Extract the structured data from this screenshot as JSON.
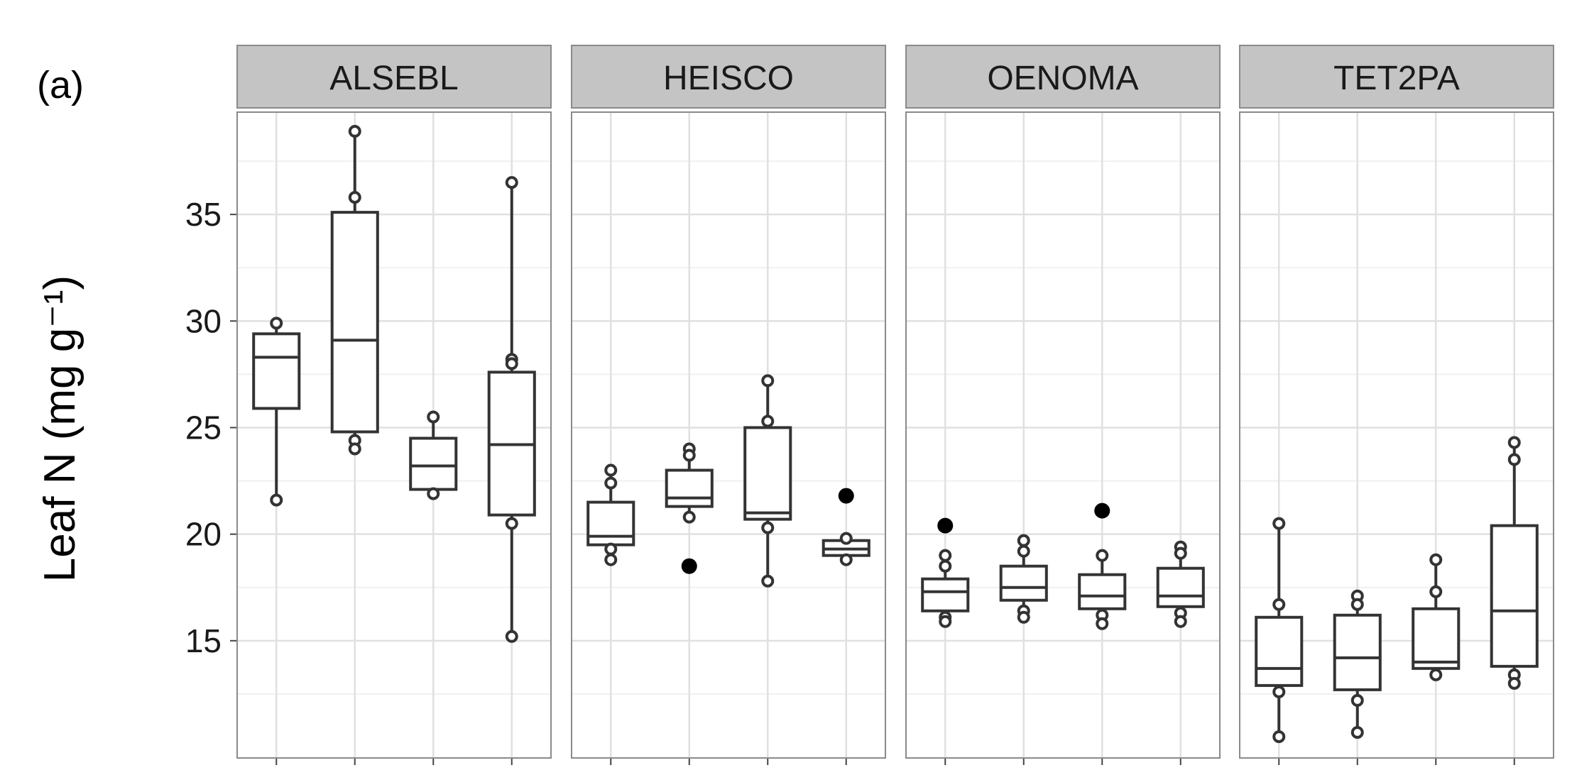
{
  "panel_label": "(a)",
  "chart_data": {
    "type": "boxplot",
    "ylabel": "Leaf N (mg g⁻¹)",
    "ylim": [
      9.5,
      39.8
    ],
    "y_ticks": [
      15,
      20,
      25,
      30,
      35
    ],
    "grid": true,
    "facets": [
      {
        "name": "ALSEBL",
        "boxes": [
          {
            "min": 21.5,
            "q1": 25.9,
            "median": 28.3,
            "q3": 29.4,
            "max": 29.9,
            "points": [
              29.9,
              21.6
            ],
            "outliers": []
          },
          {
            "min": 24.1,
            "q1": 24.8,
            "median": 29.1,
            "q3": 35.1,
            "max": 38.9,
            "points": [
              38.9,
              35.8,
              24.4,
              24.0
            ],
            "outliers": []
          },
          {
            "min": 21.9,
            "q1": 22.1,
            "median": 23.2,
            "q3": 24.5,
            "max": 25.5,
            "points": [
              25.5,
              21.9
            ],
            "outliers": []
          },
          {
            "min": 15.2,
            "q1": 20.9,
            "median": 24.2,
            "q3": 27.6,
            "max": 36.5,
            "points": [
              36.5,
              28.2,
              28.0,
              20.5,
              15.2
            ],
            "outliers": []
          }
        ]
      },
      {
        "name": "HEISCO",
        "boxes": [
          {
            "min": 18.8,
            "q1": 19.5,
            "median": 19.9,
            "q3": 21.5,
            "max": 23.0,
            "points": [
              23.0,
              22.4,
              19.3,
              18.8
            ],
            "outliers": []
          },
          {
            "min": 20.8,
            "q1": 21.3,
            "median": 21.7,
            "q3": 23.0,
            "max": 24.0,
            "points": [
              24.0,
              23.7,
              20.8
            ],
            "outliers": [
              18.5
            ]
          },
          {
            "min": 17.8,
            "q1": 20.7,
            "median": 21.0,
            "q3": 25.0,
            "max": 27.2,
            "points": [
              27.2,
              25.3,
              20.3,
              17.8
            ],
            "outliers": []
          },
          {
            "min": 18.8,
            "q1": 19.0,
            "median": 19.3,
            "q3": 19.7,
            "max": 19.8,
            "points": [
              19.8,
              18.8
            ],
            "outliers": [
              21.8
            ]
          }
        ]
      },
      {
        "name": "OENOMA",
        "boxes": [
          {
            "min": 15.9,
            "q1": 16.4,
            "median": 17.3,
            "q3": 17.9,
            "max": 19.0,
            "points": [
              19.0,
              18.5,
              16.1,
              15.9
            ],
            "outliers": [
              20.4
            ]
          },
          {
            "min": 16.1,
            "q1": 16.9,
            "median": 17.5,
            "q3": 18.5,
            "max": 19.7,
            "points": [
              19.7,
              19.2,
              16.4,
              16.1
            ],
            "outliers": []
          },
          {
            "min": 15.8,
            "q1": 16.5,
            "median": 17.1,
            "q3": 18.1,
            "max": 19.0,
            "points": [
              19.0,
              16.2,
              15.8
            ],
            "outliers": [
              21.1
            ]
          },
          {
            "min": 15.9,
            "q1": 16.6,
            "median": 17.1,
            "q3": 18.4,
            "max": 19.4,
            "points": [
              19.4,
              19.1,
              16.3,
              15.9
            ],
            "outliers": []
          }
        ]
      },
      {
        "name": "TET2PA",
        "boxes": [
          {
            "min": 10.5,
            "q1": 12.9,
            "median": 13.7,
            "q3": 16.1,
            "max": 20.5,
            "points": [
              20.5,
              16.7,
              12.6,
              10.5
            ],
            "outliers": []
          },
          {
            "min": 10.7,
            "q1": 12.7,
            "median": 14.2,
            "q3": 16.2,
            "max": 17.1,
            "points": [
              17.1,
              16.7,
              12.2,
              10.7
            ],
            "outliers": []
          },
          {
            "min": 13.4,
            "q1": 13.7,
            "median": 14.0,
            "q3": 16.5,
            "max": 18.8,
            "points": [
              18.8,
              17.3,
              13.4
            ],
            "outliers": []
          },
          {
            "min": 13.0,
            "q1": 13.8,
            "median": 16.4,
            "q3": 20.4,
            "max": 24.3,
            "points": [
              24.3,
              23.5,
              13.4,
              13.0
            ],
            "outliers": []
          }
        ]
      }
    ]
  }
}
